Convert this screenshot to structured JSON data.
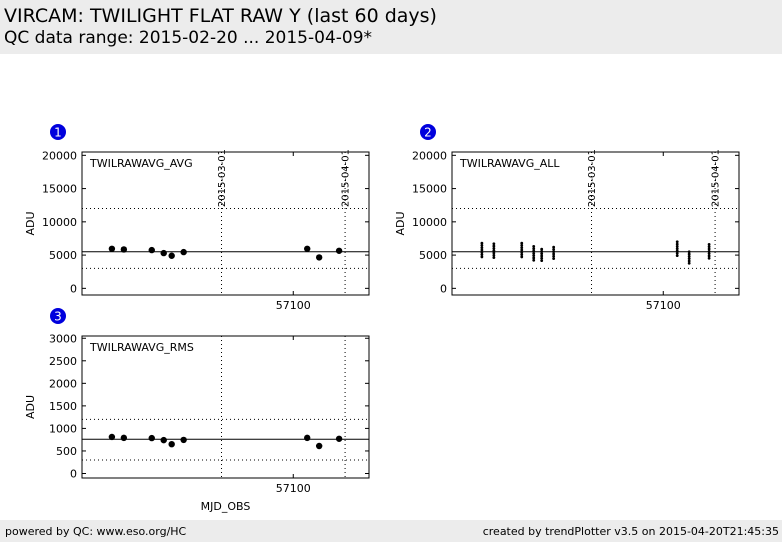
{
  "header": {
    "title": "VIRCAM: TWILIGHT FLAT RAW Y (last 60 days)",
    "subtitle": "QC data range: 2015-02-20 ... 2015-04-09*"
  },
  "footer": {
    "left": "powered by QC: www.eso.org/HC",
    "right": "created by trendPlotter v3.5 on 2015-04-20T21:45:35"
  },
  "colors": {
    "marker": "#000000",
    "badge": "#0000dd",
    "header_bg": "#ececec"
  },
  "chart_data": [
    {
      "type": "scatter",
      "badge": "1",
      "label": "TWILRAWAVG_AVG",
      "ylabel": "ADU",
      "xlabel": "",
      "xlim": [
        57047,
        57119
      ],
      "ylim": [
        -1000,
        20500
      ],
      "yticks": [
        0,
        5000,
        10000,
        15000,
        20000
      ],
      "ytick_labels": [
        "0",
        "5000",
        "10000",
        "15000",
        "20000"
      ],
      "xticks": [
        57100
      ],
      "xtick_labels": [
        "57100"
      ],
      "date_markers": [
        {
          "x": 57082,
          "label": "2015-03-01"
        },
        {
          "x": 57113,
          "label": "2015-04-01"
        }
      ],
      "ref_line": 5500,
      "limit_lines": [
        3000,
        12000
      ],
      "points": [
        {
          "x": 57054.5,
          "y": 5950
        },
        {
          "x": 57057.5,
          "y": 5850
        },
        {
          "x": 57064.5,
          "y": 5750
        },
        {
          "x": 57067.5,
          "y": 5300
        },
        {
          "x": 57069.5,
          "y": 4900
        },
        {
          "x": 57072.5,
          "y": 5450
        },
        {
          "x": 57103.5,
          "y": 5950
        },
        {
          "x": 57106.5,
          "y": 4650
        },
        {
          "x": 57111.5,
          "y": 5650
        }
      ]
    },
    {
      "type": "scatter",
      "badge": "2",
      "label": "TWILRAWAVG_ALL",
      "ylabel": "ADU",
      "xlabel": "",
      "xlim": [
        57047,
        57119
      ],
      "ylim": [
        -1000,
        20500
      ],
      "yticks": [
        0,
        5000,
        10000,
        15000,
        20000
      ],
      "ytick_labels": [
        "0",
        "5000",
        "10000",
        "15000",
        "20000"
      ],
      "xticks": [
        57100
      ],
      "xtick_labels": [
        "57100"
      ],
      "date_markers": [
        {
          "x": 57082,
          "label": "2015-03-01"
        },
        {
          "x": 57113,
          "label": "2015-04-01"
        }
      ],
      "ref_line": 5500,
      "limit_lines": [
        3000,
        12000
      ],
      "clusters": [
        {
          "x": 57054.5,
          "ymin": 4400,
          "ymax": 6800
        },
        {
          "x": 57057.5,
          "ymin": 4400,
          "ymax": 6700
        },
        {
          "x": 57064.5,
          "ymin": 4400,
          "ymax": 6800
        },
        {
          "x": 57067.5,
          "ymin": 4200,
          "ymax": 6300
        },
        {
          "x": 57069.5,
          "ymin": 3900,
          "ymax": 5900
        },
        {
          "x": 57072.5,
          "ymin": 4200,
          "ymax": 6200
        },
        {
          "x": 57103.5,
          "ymin": 4600,
          "ymax": 7000
        },
        {
          "x": 57106.5,
          "ymin": 3500,
          "ymax": 5500
        },
        {
          "x": 57111.5,
          "ymin": 4400,
          "ymax": 6600
        }
      ]
    },
    {
      "type": "scatter",
      "badge": "3",
      "label": "TWILRAWAVG_RMS",
      "ylabel": "ADU",
      "xlabel": "MJD_OBS",
      "xlim": [
        57047,
        57119
      ],
      "ylim": [
        -100,
        3050
      ],
      "yticks": [
        0,
        500,
        1000,
        1500,
        2000,
        2500,
        3000
      ],
      "ytick_labels": [
        "0",
        "500",
        "1000",
        "1500",
        "2000",
        "2500",
        "3000"
      ],
      "xticks": [
        57100
      ],
      "xtick_labels": [
        "57100"
      ],
      "date_markers": [
        {
          "x": 57082,
          "label": ""
        },
        {
          "x": 57113,
          "label": ""
        }
      ],
      "ref_line": 760,
      "limit_lines": [
        300,
        1200
      ],
      "points": [
        {
          "x": 57054.5,
          "y": 810
        },
        {
          "x": 57057.5,
          "y": 790
        },
        {
          "x": 57064.5,
          "y": 785
        },
        {
          "x": 57067.5,
          "y": 740
        },
        {
          "x": 57069.5,
          "y": 650
        },
        {
          "x": 57072.5,
          "y": 745
        },
        {
          "x": 57103.5,
          "y": 790
        },
        {
          "x": 57106.5,
          "y": 610
        },
        {
          "x": 57111.5,
          "y": 770
        }
      ]
    }
  ]
}
